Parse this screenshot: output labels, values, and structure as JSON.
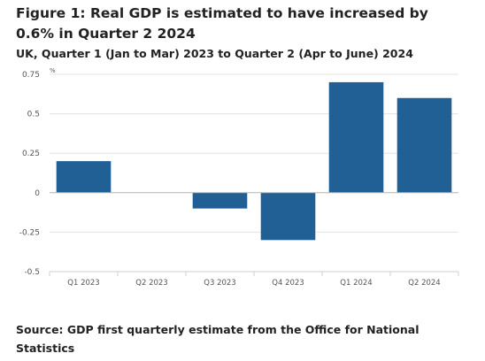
{
  "title": "Figure 1: Real GDP is estimated to have increased by 0.6% in Quarter 2 2024",
  "subtitle": "UK, Quarter 1 (Jan to Mar) 2023 to Quarter 2 (Apr to June) 2024",
  "source": "Source: GDP first quarterly estimate from the Office for National Statistics",
  "chart_data": {
    "type": "bar",
    "categories": [
      "Q1 2023",
      "Q2 2023",
      "Q3 2023",
      "Q4 2023",
      "Q1 2024",
      "Q2 2024"
    ],
    "values": [
      0.2,
      0.0,
      -0.1,
      -0.3,
      0.7,
      0.6
    ],
    "ylabel": "%",
    "ylim": [
      -0.5,
      0.75
    ],
    "yticks": [
      0.75,
      0.5,
      0.25,
      0,
      -0.25,
      -0.5
    ],
    "ytick_labels": [
      "0.75",
      "0.5",
      "0.25",
      "0",
      "-0.25",
      "-0.5"
    ],
    "grid": true,
    "bar_color": "#206095",
    "grid_color": "#e3e3e3",
    "zero_line_color": "#b3b3b3"
  }
}
